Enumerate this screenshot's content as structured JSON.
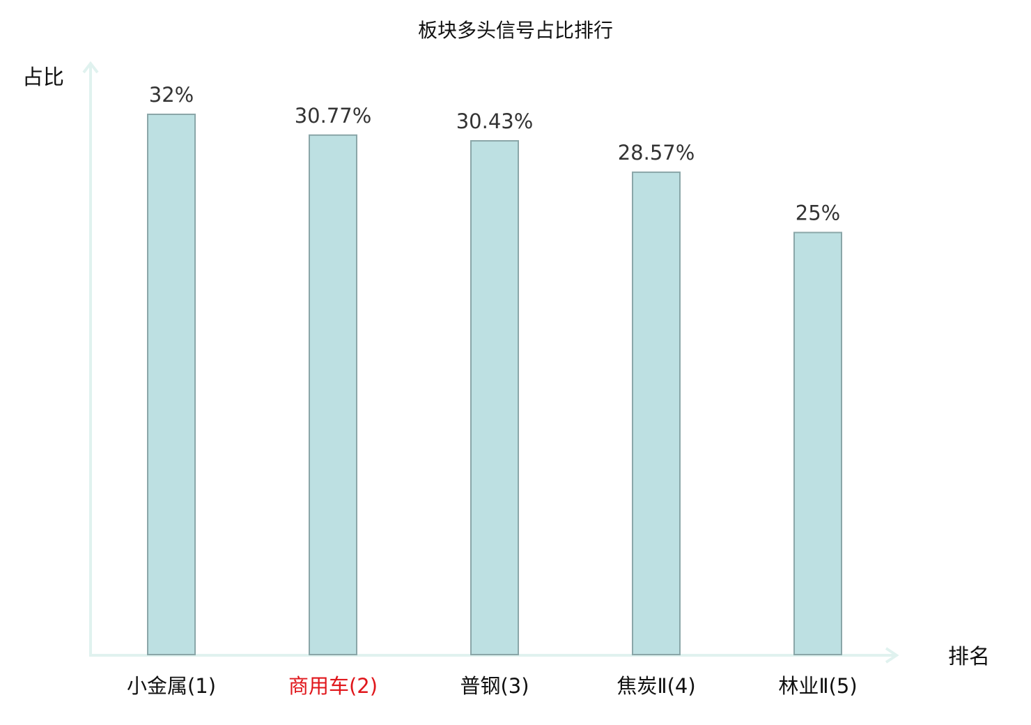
{
  "chart_data": {
    "type": "bar",
    "title": "板块多头信号占比排行",
    "xlabel": "排名",
    "ylabel": "占比",
    "categories": [
      "小金属(1)",
      "商用车(2)",
      "普钢(3)",
      "焦炭Ⅱ(4)",
      "林业Ⅱ(5)"
    ],
    "values": [
      32,
      30.77,
      30.43,
      28.57,
      25
    ],
    "value_labels": [
      "32%",
      "30.77%",
      "30.43%",
      "28.57%",
      "25%"
    ],
    "value_unit": "%",
    "ylim": [
      0,
      32
    ],
    "grid": false,
    "highlight_index": 1
  },
  "colors": {
    "bar_fill": "#bde0e2",
    "bar_stroke": "#8aa6a8",
    "axis": "#e0f2ef",
    "category_text": "#111111",
    "highlight_text": "#e0161b",
    "value_text": "#333333",
    "title_text": "#111111"
  }
}
